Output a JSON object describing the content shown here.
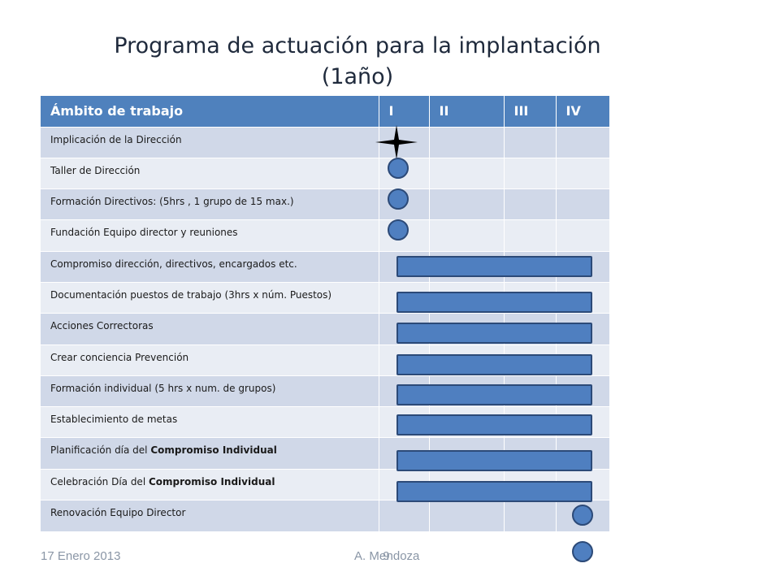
{
  "slide": {
    "title_line1": "Programa de actuación para la implantación",
    "title_line2": "(1año)"
  },
  "table": {
    "headers": [
      "Ámbito de trabajo",
      "I",
      "II",
      "III",
      "IV"
    ],
    "rows": [
      {
        "label": "Implicación de la Dirección"
      },
      {
        "label": "Taller de Dirección"
      },
      {
        "label": "Formación Directivos: (5hrs , 1 grupo de 15 max.)"
      },
      {
        "label": "Fundación Equipo director y reuniones"
      },
      {
        "label": "Compromiso dirección, directivos, encargados etc."
      },
      {
        "label": "Documentación puestos de trabajo (3hrs x núm. Puestos)"
      },
      {
        "label": "Acciones Correctoras"
      },
      {
        "label": "Crear conciencia Prevención"
      },
      {
        "label": "Formación individual (5 hrs x num. de grupos)"
      },
      {
        "label": "Establecimiento de metas"
      },
      {
        "label_prefix": "Planificación día del ",
        "label_bold": "Compromiso Individual"
      },
      {
        "label_prefix": "Celebración Día del ",
        "label_bold": "Compromiso Individual"
      },
      {
        "label": "Renovación Equipo Director"
      }
    ]
  },
  "footer": {
    "date": "17 Enero 2013",
    "author_part1": "A. Me",
    "page_number": "9",
    "author_part2": "ndoza"
  },
  "colors": {
    "header": "#4f81bd",
    "row_odd": "#d0d8e8",
    "row_even": "#e9edf4",
    "marker_fill": "#4f7fc0",
    "marker_border": "#2c4a78"
  },
  "icons": {
    "start_marker": "four-point-star-icon",
    "milestone": "circle-icon",
    "duration": "bar-icon"
  }
}
